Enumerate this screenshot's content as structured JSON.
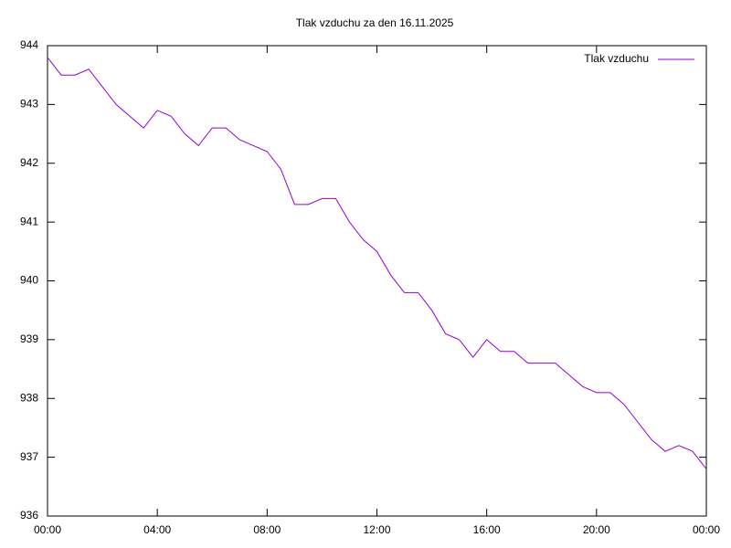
{
  "chart_data": {
    "type": "line",
    "title": "Tlak vzduchu za den 16.11.2025",
    "x": [
      0,
      0.5,
      1,
      1.5,
      2,
      2.5,
      3,
      3.5,
      4,
      4.5,
      5,
      5.5,
      6,
      6.5,
      7,
      7.5,
      8,
      8.5,
      9,
      9.5,
      10,
      10.5,
      11,
      11.5,
      12,
      12.5,
      13,
      13.5,
      14,
      14.5,
      15,
      15.5,
      16,
      16.5,
      17,
      17.5,
      18,
      18.5,
      19,
      19.5,
      20,
      20.5,
      21,
      21.5,
      22,
      22.5,
      23,
      23.5,
      24
    ],
    "series": [
      {
        "name": "Tlak vzduchu",
        "color": "#9400d3",
        "values": [
          943.8,
          943.5,
          943.5,
          943.6,
          943.3,
          943.0,
          942.8,
          942.6,
          942.9,
          942.8,
          942.5,
          942.3,
          942.6,
          942.6,
          942.4,
          942.3,
          942.2,
          941.9,
          941.3,
          941.3,
          941.4,
          941.4,
          941.0,
          940.7,
          940.5,
          940.1,
          939.8,
          939.8,
          939.5,
          939.1,
          939.0,
          938.7,
          939.0,
          938.8,
          938.8,
          938.6,
          938.6,
          938.6,
          938.4,
          938.2,
          938.1,
          938.1,
          937.9,
          937.6,
          937.3,
          937.1,
          937.2,
          937.1,
          936.8
        ]
      }
    ],
    "xlim": [
      0,
      24
    ],
    "xticks": [
      {
        "value": 0,
        "label": "00:00"
      },
      {
        "value": 4,
        "label": "04:00"
      },
      {
        "value": 8,
        "label": "08:00"
      },
      {
        "value": 12,
        "label": "12:00"
      },
      {
        "value": 16,
        "label": "16:00"
      },
      {
        "value": 20,
        "label": "20:00"
      },
      {
        "value": 24,
        "label": "00:00"
      }
    ],
    "ylim": [
      936,
      944
    ],
    "yticks": [
      936,
      937,
      938,
      939,
      940,
      941,
      942,
      943,
      944
    ],
    "legend": "top-right"
  }
}
